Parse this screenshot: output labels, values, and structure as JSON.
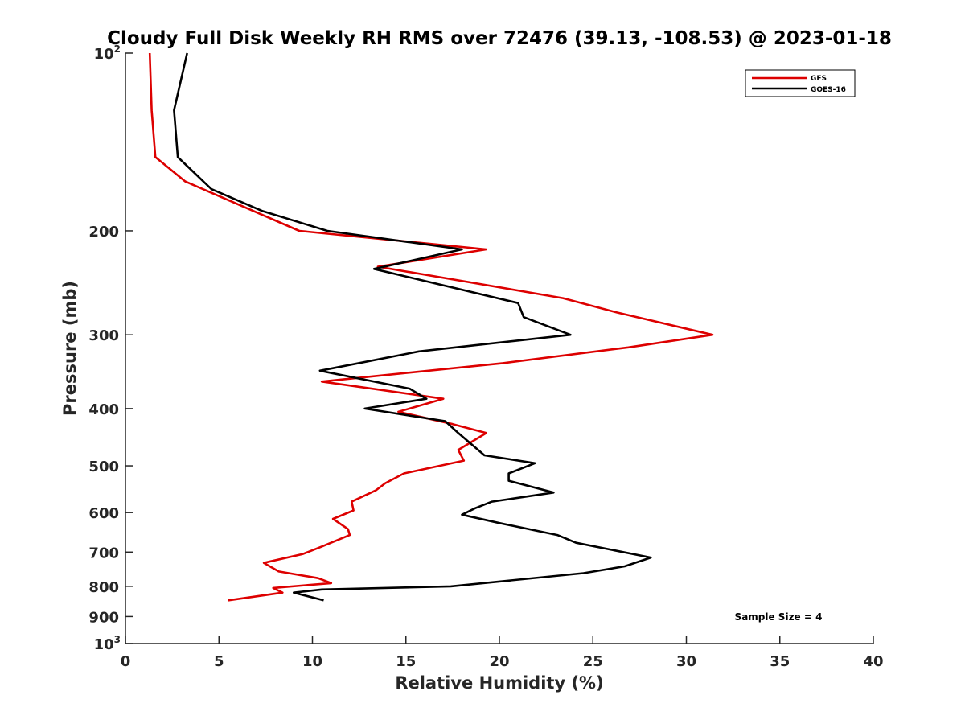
{
  "chart_data": {
    "type": "line",
    "title": "Cloudy Full Disk Weekly RH RMS over 72476 (39.13, -108.53) @ 2023-01-18",
    "xlabel": "Relative Humidity (%)",
    "ylabel": "Pressure (mb)",
    "xlim": [
      0,
      40
    ],
    "ylim": [
      100,
      1000
    ],
    "y_scale": "log",
    "y_reversed": true,
    "grid": false,
    "legend_position": "top-right",
    "x_ticks": [
      "0",
      "5",
      "10",
      "15",
      "20",
      "25",
      "30",
      "35",
      "40"
    ],
    "y_ticks": [
      {
        "value": 100,
        "base": "10",
        "exp": "2"
      },
      {
        "value": 200,
        "label": "200"
      },
      {
        "value": 300,
        "label": "300"
      },
      {
        "value": 400,
        "label": "400"
      },
      {
        "value": 500,
        "label": "500"
      },
      {
        "value": 600,
        "label": "600"
      },
      {
        "value": 700,
        "label": "700"
      },
      {
        "value": 800,
        "label": "800"
      },
      {
        "value": 900,
        "label": "900"
      },
      {
        "value": 1000,
        "base": "10",
        "exp": "3"
      }
    ],
    "annotation": "Sample Size = 4",
    "series": [
      {
        "name": "GFS",
        "color": "#dd0000",
        "points": [
          [
            1.3,
            100
          ],
          [
            1.4,
            125
          ],
          [
            1.6,
            150
          ],
          [
            3.2,
            165
          ],
          [
            9.3,
            200
          ],
          [
            19.3,
            215
          ],
          [
            13.5,
            230
          ],
          [
            23.4,
            260
          ],
          [
            26.3,
            275
          ],
          [
            31.4,
            300
          ],
          [
            26.9,
            315
          ],
          [
            20.2,
            335
          ],
          [
            10.5,
            360
          ],
          [
            17.0,
            385
          ],
          [
            14.6,
            405
          ],
          [
            17.5,
            425
          ],
          [
            19.3,
            440
          ],
          [
            17.8,
            470
          ],
          [
            18.1,
            490
          ],
          [
            14.9,
            515
          ],
          [
            13.9,
            535
          ],
          [
            13.4,
            550
          ],
          [
            12.1,
            575
          ],
          [
            12.2,
            595
          ],
          [
            11.1,
            615
          ],
          [
            11.9,
            640
          ],
          [
            12.0,
            655
          ],
          [
            10.5,
            685
          ],
          [
            9.5,
            705
          ],
          [
            7.4,
            730
          ],
          [
            8.2,
            755
          ],
          [
            10.3,
            775
          ],
          [
            11.0,
            790
          ],
          [
            7.9,
            805
          ],
          [
            8.4,
            820
          ],
          [
            5.5,
            845
          ]
        ]
      },
      {
        "name": "GOES-16",
        "color": "#000000",
        "points": [
          [
            3.3,
            100
          ],
          [
            2.6,
            125
          ],
          [
            2.8,
            150
          ],
          [
            4.6,
            170
          ],
          [
            7.3,
            185
          ],
          [
            10.8,
            200
          ],
          [
            18.0,
            215
          ],
          [
            13.3,
            232
          ],
          [
            21.0,
            265
          ],
          [
            21.3,
            280
          ],
          [
            23.8,
            300
          ],
          [
            15.7,
            320
          ],
          [
            10.4,
            345
          ],
          [
            15.2,
            370
          ],
          [
            16.1,
            385
          ],
          [
            12.8,
            400
          ],
          [
            17.1,
            420
          ],
          [
            17.8,
            440
          ],
          [
            19.2,
            480
          ],
          [
            21.9,
            495
          ],
          [
            20.5,
            515
          ],
          [
            20.5,
            530
          ],
          [
            22.9,
            555
          ],
          [
            19.6,
            575
          ],
          [
            18.7,
            590
          ],
          [
            18.0,
            605
          ],
          [
            20.0,
            625
          ],
          [
            23.1,
            655
          ],
          [
            24.1,
            675
          ],
          [
            28.1,
            715
          ],
          [
            26.7,
            740
          ],
          [
            24.5,
            760
          ],
          [
            17.4,
            800
          ],
          [
            10.5,
            810
          ],
          [
            9.0,
            820
          ],
          [
            10.6,
            845
          ]
        ]
      }
    ]
  }
}
